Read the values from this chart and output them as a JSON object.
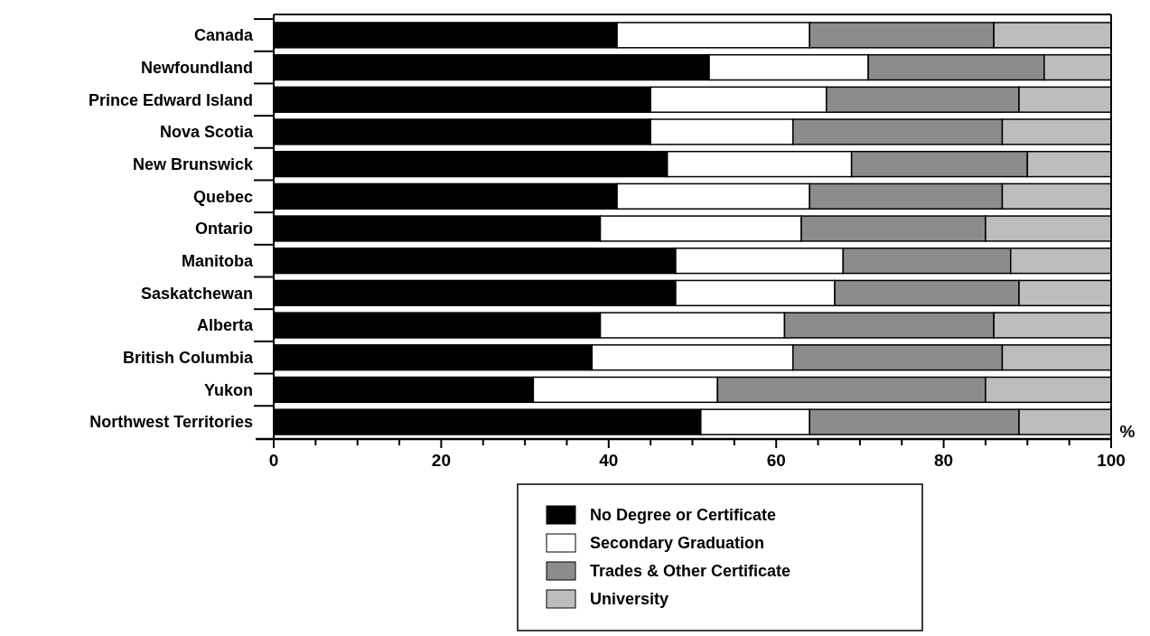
{
  "chart_data": {
    "type": "bar",
    "orientation": "horizontal",
    "stacked": true,
    "xlabel": "%",
    "categories": [
      "Canada",
      "Newfoundland",
      "Prince Edward Island",
      "Nova Scotia",
      "New Brunswick",
      "Quebec",
      "Ontario",
      "Manitoba",
      "Saskatchewan",
      "Alberta",
      "British Columbia",
      "Yukon",
      "Northwest Territories"
    ],
    "series": [
      {
        "name": "No Degree or Certificate",
        "color": "#000000",
        "values": [
          41,
          52,
          45,
          45,
          47,
          41,
          39,
          48,
          48,
          39,
          38,
          31,
          51
        ]
      },
      {
        "name": "Secondary Graduation",
        "color": "#ffffff",
        "values": [
          23,
          19,
          21,
          17,
          22,
          23,
          24,
          20,
          19,
          22,
          24,
          22,
          13
        ]
      },
      {
        "name": "Trades & Other Certificate",
        "color": "#8c8c8c",
        "values": [
          22,
          21,
          23,
          25,
          21,
          23,
          22,
          20,
          22,
          25,
          25,
          32,
          25
        ]
      },
      {
        "name": "University",
        "color": "#bdbdbd",
        "values": [
          14,
          8,
          11,
          13,
          10,
          13,
          15,
          12,
          11,
          14,
          13,
          15,
          11
        ]
      }
    ],
    "xlim": [
      0,
      100
    ],
    "xticks": [
      0,
      {
        "value": 5,
        "label": null
      },
      {
        "value": 10,
        "label": null
      },
      {
        "value": 15,
        "label": null
      },
      20,
      {
        "value": 25,
        "label": null
      },
      {
        "value": 30,
        "label": null
      },
      {
        "value": 35,
        "label": null
      },
      40,
      {
        "value": 45,
        "label": null
      },
      {
        "value": 50,
        "label": null
      },
      {
        "value": 55,
        "label": null
      },
      60,
      {
        "value": 65,
        "label": null
      },
      {
        "value": 70,
        "label": null
      },
      {
        "value": 75,
        "label": null
      },
      80,
      {
        "value": 85,
        "label": null
      },
      {
        "value": 90,
        "label": null
      },
      {
        "value": 95,
        "label": null
      },
      100
    ],
    "legend": "bottom"
  }
}
